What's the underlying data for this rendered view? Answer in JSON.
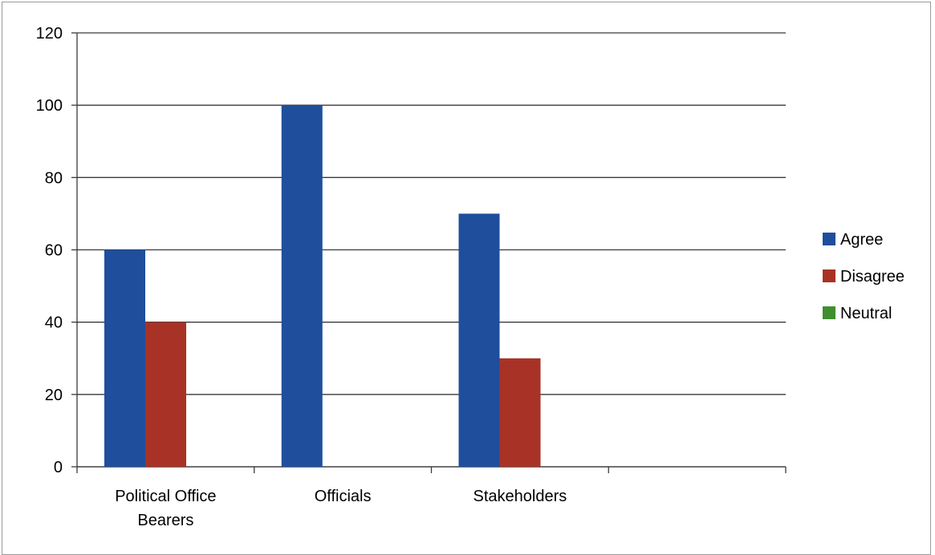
{
  "chart_data": {
    "type": "bar",
    "title": "",
    "xlabel": "",
    "ylabel": "",
    "categories": [
      [
        "Political Office",
        "Bearers"
      ],
      [
        "Officials"
      ],
      [
        "Stakeholders"
      ],
      [
        ""
      ]
    ],
    "series": [
      {
        "name": "Agree",
        "color": "#1f4e9c",
        "values": [
          60,
          100,
          70,
          0
        ]
      },
      {
        "name": "Disagree",
        "color": "#a93226",
        "values": [
          40,
          0,
          30,
          0
        ]
      },
      {
        "name": "Neutral",
        "color": "#3f8f2e",
        "values": [
          0,
          0,
          0,
          0
        ]
      }
    ],
    "ylim": [
      0,
      120
    ],
    "yticks": [
      0,
      20,
      40,
      60,
      80,
      100,
      120
    ],
    "grid": true,
    "legend_position": "right"
  }
}
